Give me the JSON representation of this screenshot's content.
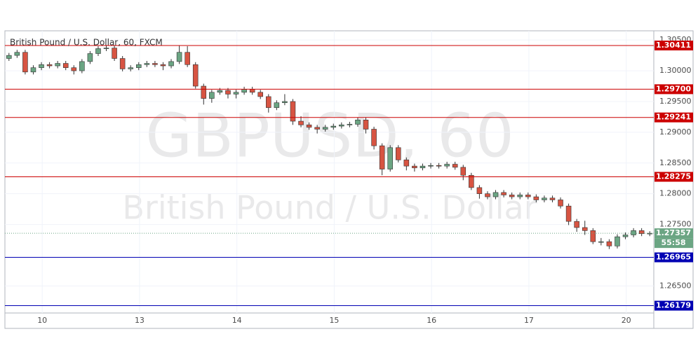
{
  "chart_data": {
    "type": "candlestick",
    "title": "British Pound / U.S. Dollar, 60, FXCM",
    "watermark": "GBPUSD, 60",
    "watermark_subtitle": "British Pound / U.S. Dollar",
    "up_color": "#6ba583",
    "down_color": "#d75442",
    "grid": true,
    "xlim": [
      0,
      80
    ],
    "xticks": [
      {
        "value": 4.6,
        "label": "10"
      },
      {
        "value": 16.6,
        "label": "13"
      },
      {
        "value": 28.6,
        "label": "14"
      },
      {
        "value": 40.6,
        "label": "15"
      },
      {
        "value": 52.6,
        "label": "16"
      },
      {
        "value": 64.6,
        "label": "17"
      },
      {
        "value": 76.6,
        "label": "20"
      }
    ],
    "ylim": [
      1.2606,
      1.3065
    ],
    "yticks": [
      {
        "value": 1.305,
        "label": "1.30500"
      },
      {
        "value": 1.3,
        "label": "1.30000"
      },
      {
        "value": 1.295,
        "label": "1.29500"
      },
      {
        "value": 1.29,
        "label": "1.29000"
      },
      {
        "value": 1.285,
        "label": "1.28500"
      },
      {
        "value": 1.28,
        "label": "1.28000"
      },
      {
        "value": 1.275,
        "label": "1.27500"
      },
      {
        "value": 1.265,
        "label": "1.26500"
      }
    ],
    "open": [
      1.302,
      1.3025,
      1.303,
      1.2998,
      1.3005,
      1.301,
      1.3008,
      1.3012,
      1.3005,
      1.3,
      1.3015,
      1.3028,
      1.3036,
      1.3037,
      1.302,
      1.3003,
      1.3005,
      1.301,
      1.3012,
      1.301,
      1.3008,
      1.3015,
      1.303,
      1.301,
      1.2975,
      1.2955,
      1.2965,
      1.2968,
      1.2962,
      1.2965,
      1.297,
      1.2965,
      1.2958,
      1.294,
      1.2948,
      1.295,
      1.2918,
      1.2912,
      1.2908,
      1.2905,
      1.2908,
      1.291,
      1.2912,
      1.2913,
      1.292,
      1.2905,
      1.2878,
      1.284,
      1.2875,
      1.2855,
      1.2845,
      1.2842,
      1.2845,
      1.2846,
      1.2845,
      1.2848,
      1.2843,
      1.283,
      1.281,
      1.28,
      1.2795,
      1.2802,
      1.2798,
      1.2795,
      1.2798,
      1.2795,
      1.279,
      1.2793,
      1.279,
      1.278,
      1.2755,
      1.2745,
      1.274,
      1.2722,
      1.2722,
      1.2715,
      1.273,
      1.2733,
      1.274,
      1.2735
    ],
    "high": [
      1.3029,
      1.3034,
      1.3034,
      1.3009,
      1.3014,
      1.3014,
      1.3016,
      1.3016,
      1.3009,
      1.3019,
      1.3032,
      1.304,
      1.3041,
      1.3041,
      1.3024,
      1.3009,
      1.3014,
      1.3016,
      1.3016,
      1.3014,
      1.3019,
      1.3041,
      1.304,
      1.3014,
      1.2979,
      1.2969,
      1.2972,
      1.2972,
      1.2969,
      1.2974,
      1.2974,
      1.2969,
      1.2962,
      1.2952,
      1.2962,
      1.2954,
      1.2926,
      1.2916,
      1.2912,
      1.2912,
      1.2914,
      1.2916,
      1.2917,
      1.2924,
      1.2924,
      1.2909,
      1.2882,
      1.2879,
      1.2879,
      1.2859,
      1.2849,
      1.2849,
      1.285,
      1.285,
      1.2852,
      1.2852,
      1.2847,
      1.2834,
      1.2814,
      1.2804,
      1.2806,
      1.2806,
      1.2802,
      1.2802,
      1.2802,
      1.2799,
      1.2797,
      1.2797,
      1.2794,
      1.2784,
      1.2759,
      1.2756,
      1.2744,
      1.2728,
      1.2726,
      1.2734,
      1.2737,
      1.2744,
      1.2744,
      1.2739
    ],
    "low": [
      1.3016,
      1.3021,
      1.2994,
      1.2994,
      1.3001,
      1.3004,
      1.3004,
      1.3001,
      1.2994,
      1.2996,
      1.3011,
      1.3024,
      1.3032,
      1.3016,
      1.2999,
      1.2999,
      1.3001,
      1.3006,
      1.3006,
      1.3001,
      1.3004,
      1.3011,
      1.3006,
      1.2971,
      1.2945,
      1.2948,
      1.2961,
      1.2955,
      1.2955,
      1.2961,
      1.2961,
      1.2954,
      1.2932,
      1.2936,
      1.2944,
      1.2912,
      1.2908,
      1.2904,
      1.2898,
      1.2901,
      1.2904,
      1.2906,
      1.2908,
      1.2909,
      1.2898,
      1.2872,
      1.283,
      1.2836,
      1.2851,
      1.2838,
      1.2836,
      1.2838,
      1.2841,
      1.2841,
      1.2841,
      1.2839,
      1.2822,
      1.2806,
      1.2792,
      1.2791,
      1.2791,
      1.2794,
      1.2791,
      1.2791,
      1.2791,
      1.2786,
      1.2786,
      1.2786,
      1.2776,
      1.2749,
      1.2738,
      1.2733,
      1.2718,
      1.2716,
      1.271,
      1.2711,
      1.2726,
      1.2729,
      1.2731,
      1.2731
    ],
    "close": [
      1.3025,
      1.303,
      1.2998,
      1.3005,
      1.301,
      1.3008,
      1.3012,
      1.3005,
      1.3,
      1.3015,
      1.3028,
      1.3036,
      1.3037,
      1.302,
      1.3003,
      1.3005,
      1.301,
      1.3012,
      1.301,
      1.3008,
      1.3015,
      1.303,
      1.301,
      1.2975,
      1.2955,
      1.2965,
      1.2968,
      1.2962,
      1.2965,
      1.297,
      1.2965,
      1.2958,
      1.294,
      1.2948,
      1.295,
      1.2918,
      1.2912,
      1.2908,
      1.2905,
      1.2908,
      1.291,
      1.2912,
      1.2913,
      1.292,
      1.2905,
      1.2878,
      1.284,
      1.2875,
      1.2855,
      1.2845,
      1.2842,
      1.2845,
      1.2846,
      1.2845,
      1.2848,
      1.2843,
      1.283,
      1.281,
      1.28,
      1.2795,
      1.2802,
      1.2798,
      1.2795,
      1.2798,
      1.2795,
      1.279,
      1.2793,
      1.279,
      1.278,
      1.2755,
      1.2745,
      1.274,
      1.2722,
      1.2722,
      1.2715,
      1.273,
      1.2733,
      1.274,
      1.2735,
      1.27357
    ],
    "levels": [
      {
        "value": 1.30411,
        "label": "1.30411",
        "color": "#cc0000"
      },
      {
        "value": 1.297,
        "label": "1.29700",
        "color": "#cc0000"
      },
      {
        "value": 1.29241,
        "label": "1.29241",
        "color": "#cc0000"
      },
      {
        "value": 1.28275,
        "label": "1.28275",
        "color": "#cc0000"
      },
      {
        "value": 1.26965,
        "label": "1.26965",
        "color": "#0000b3"
      },
      {
        "value": 1.26179,
        "label": "1.26179",
        "color": "#0000b3"
      }
    ],
    "last_price": {
      "value": 1.27357,
      "label": "1.27357",
      "color": "#6ba583"
    },
    "countdown": "55:58"
  }
}
